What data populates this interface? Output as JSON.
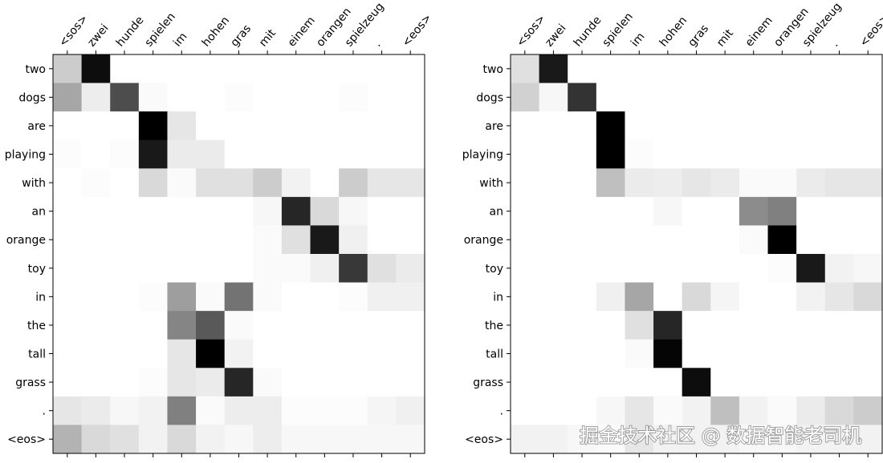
{
  "chart_data": [
    {
      "type": "heatmap",
      "colormap": "Greys",
      "x": [
        "<sos>",
        "zwei",
        "hunde",
        "spielen",
        "im",
        "hohen",
        "gras",
        "mit",
        "einem",
        "orangen",
        "spielzeug",
        ".",
        "<eos>"
      ],
      "y": [
        "two",
        "dogs",
        "are",
        "playing",
        "with",
        "an",
        "orange",
        "toy",
        "in",
        "the",
        "tall",
        "grass",
        ".",
        "<eos>"
      ],
      "values": [
        [
          0.2,
          0.95,
          0,
          0,
          0,
          0,
          0,
          0,
          0,
          0,
          0,
          0,
          0
        ],
        [
          0.35,
          0.07,
          0.7,
          0.02,
          0,
          0,
          0.01,
          0,
          0,
          0,
          0.01,
          0,
          0
        ],
        [
          0,
          0,
          0,
          1.0,
          0.1,
          0,
          0,
          0,
          0,
          0,
          0,
          0,
          0
        ],
        [
          0.01,
          0,
          0.01,
          0.9,
          0.08,
          0.08,
          0,
          0,
          0,
          0,
          0,
          0,
          0
        ],
        [
          0,
          0.01,
          0,
          0.15,
          0.02,
          0.12,
          0.12,
          0.2,
          0.05,
          0,
          0.2,
          0.1,
          0.1
        ],
        [
          0,
          0,
          0,
          0,
          0,
          0,
          0,
          0.03,
          0.85,
          0.15,
          0.03,
          0,
          0
        ],
        [
          0,
          0,
          0,
          0,
          0,
          0,
          0,
          0.02,
          0.12,
          0.9,
          0.06,
          0,
          0
        ],
        [
          0,
          0,
          0,
          0,
          0,
          0,
          0,
          0.02,
          0.02,
          0.06,
          0.78,
          0.12,
          0.08
        ],
        [
          0,
          0,
          0,
          0.01,
          0.38,
          0.02,
          0.55,
          0.02,
          0,
          0,
          0.01,
          0.06,
          0.06
        ],
        [
          0,
          0,
          0,
          0,
          0.48,
          0.65,
          0.02,
          0,
          0,
          0,
          0,
          0,
          0
        ],
        [
          0,
          0,
          0,
          0,
          0.1,
          1.0,
          0.05,
          0,
          0,
          0,
          0,
          0,
          0
        ],
        [
          0,
          0,
          0,
          0.01,
          0.1,
          0.08,
          0.85,
          0.02,
          0,
          0,
          0,
          0,
          0
        ],
        [
          0.1,
          0.08,
          0.03,
          0.05,
          0.5,
          0.02,
          0.07,
          0.07,
          0.01,
          0.01,
          0.01,
          0.04,
          0.06
        ],
        [
          0.3,
          0.15,
          0.12,
          0.05,
          0.15,
          0.05,
          0.03,
          0.07,
          0.03,
          0.03,
          0.03,
          0.03,
          0.03
        ]
      ]
    },
    {
      "type": "heatmap",
      "colormap": "Greys",
      "x": [
        "<sos>",
        "zwei",
        "hunde",
        "spielen",
        "im",
        "hohen",
        "gras",
        "mit",
        "einem",
        "orangen",
        "spielzeug",
        ".",
        "<eos>"
      ],
      "y": [
        "two",
        "dogs",
        "are",
        "playing",
        "with",
        "an",
        "orange",
        "toy",
        "in",
        "the",
        "tall",
        "grass",
        ".",
        "<eos>"
      ],
      "values": [
        [
          0.12,
          0.9,
          0,
          0,
          0,
          0,
          0,
          0,
          0,
          0,
          0,
          0,
          0
        ],
        [
          0.18,
          0.03,
          0.8,
          0,
          0,
          0,
          0,
          0,
          0,
          0,
          0,
          0,
          0
        ],
        [
          0,
          0,
          0,
          1.0,
          0,
          0,
          0,
          0,
          0,
          0,
          0,
          0,
          0
        ],
        [
          0,
          0,
          0,
          1.0,
          0.01,
          0,
          0,
          0,
          0,
          0,
          0,
          0,
          0
        ],
        [
          0,
          0,
          0,
          0.25,
          0.08,
          0.07,
          0.1,
          0.08,
          0.02,
          0.02,
          0.08,
          0.1,
          0.1
        ],
        [
          0,
          0,
          0,
          0,
          0,
          0.03,
          0,
          0,
          0.45,
          0.5,
          0,
          0,
          0
        ],
        [
          0,
          0,
          0,
          0,
          0,
          0,
          0,
          0,
          0.02,
          1.0,
          0,
          0,
          0
        ],
        [
          0,
          0,
          0,
          0,
          0,
          0,
          0,
          0,
          0,
          0.01,
          0.9,
          0.05,
          0.03
        ],
        [
          0,
          0,
          0,
          0.06,
          0.35,
          0,
          0.15,
          0.04,
          0,
          0,
          0.05,
          0.1,
          0.15
        ],
        [
          0,
          0,
          0,
          0,
          0.12,
          0.85,
          0,
          0,
          0,
          0,
          0,
          0,
          0
        ],
        [
          0,
          0,
          0,
          0,
          0.02,
          0.98,
          0,
          0,
          0,
          0,
          0,
          0,
          0
        ],
        [
          0,
          0,
          0,
          0,
          0,
          0,
          0.95,
          0,
          0,
          0,
          0,
          0,
          0
        ],
        [
          0,
          0,
          0,
          0.03,
          0.1,
          0.02,
          0.05,
          0.25,
          0.05,
          0.02,
          0.08,
          0.15,
          0.2
        ],
        [
          0.05,
          0.05,
          0.03,
          0.02,
          0.1,
          0.05,
          0.05,
          0.05,
          0.03,
          0.03,
          0.05,
          0.05,
          0.05
        ]
      ]
    }
  ],
  "watermark": "掘金技术社区 @ 数据智能老司机"
}
